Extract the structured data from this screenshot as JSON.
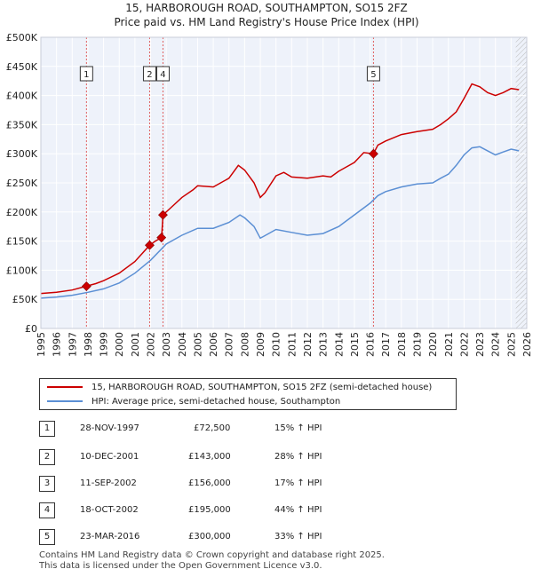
{
  "title_line1": "15, HARBOROUGH ROAD, SOUTHAMPTON, SO15 2FZ",
  "title_line2": "Price paid vs. HM Land Registry's House Price Index (HPI)",
  "colors": {
    "price": "#cc0000",
    "hpi": "#5b8fd4",
    "grid": "#dde3ee",
    "bg": "#eef2fa",
    "vline": "#e06060",
    "hatch": "#b0b0b0"
  },
  "chart_data": {
    "type": "line",
    "title": "Price paid vs. HM Land Registry's House Price Index (HPI)",
    "xlim": [
      1995,
      2026
    ],
    "ylim": [
      0,
      500000
    ],
    "y_ticks": [
      {
        "value": 0,
        "label": "£0"
      },
      {
        "value": 50000,
        "label": "£50K"
      },
      {
        "value": 100000,
        "label": "£100K"
      },
      {
        "value": 150000,
        "label": "£150K"
      },
      {
        "value": 200000,
        "label": "£200K"
      },
      {
        "value": 250000,
        "label": "£250K"
      },
      {
        "value": 300000,
        "label": "£300K"
      },
      {
        "value": 350000,
        "label": "£350K"
      },
      {
        "value": 400000,
        "label": "£400K"
      },
      {
        "value": 450000,
        "label": "£450K"
      },
      {
        "value": 500000,
        "label": "£500K"
      }
    ],
    "x_ticks": [
      "1995",
      "1996",
      "1997",
      "1998",
      "1999",
      "2000",
      "2001",
      "2002",
      "2003",
      "2004",
      "2005",
      "2006",
      "2007",
      "2008",
      "2009",
      "2010",
      "2011",
      "2012",
      "2013",
      "2014",
      "2015",
      "2016",
      "2017",
      "2018",
      "2019",
      "2020",
      "2021",
      "2022",
      "2023",
      "2024",
      "2025",
      "2026"
    ],
    "series": [
      {
        "name": "15, HARBOROUGH ROAD, SOUTHAMPTON, SO15 2FZ (semi-detached house)",
        "x": [
          1995,
          1996,
          1997,
          1997.9,
          1998.5,
          1999,
          2000,
          2001,
          2001.94,
          2002.3,
          2002.7,
          2002.79,
          2003.2,
          2004,
          2004.7,
          2005,
          2006,
          2007,
          2007.6,
          2008,
          2008.6,
          2009,
          2009.3,
          2010,
          2010.5,
          2011,
          2012,
          2013,
          2013.5,
          2014,
          2015,
          2015.6,
          2016.22,
          2016.5,
          2017,
          2018,
          2019,
          2020,
          2020.5,
          2021,
          2021.5,
          2022,
          2022.5,
          2023,
          2023.5,
          2024,
          2024.5,
          2025,
          2025.5
        ],
        "y": [
          60000,
          62000,
          66000,
          72500,
          77000,
          82000,
          95000,
          115000,
          143000,
          150000,
          156000,
          195000,
          205000,
          225000,
          238000,
          245000,
          243000,
          258000,
          280000,
          272000,
          250000,
          225000,
          233000,
          262000,
          268000,
          260000,
          258000,
          262000,
          260000,
          270000,
          285000,
          302000,
          300000,
          315000,
          322000,
          333000,
          338000,
          342000,
          350000,
          360000,
          372000,
          395000,
          420000,
          415000,
          405000,
          400000,
          405000,
          412000,
          410000
        ]
      },
      {
        "name": "HPI: Average price, semi-detached house, Southampton",
        "x": [
          1995,
          1996,
          1997,
          1998,
          1999,
          2000,
          2001,
          2002,
          2003,
          2004,
          2005,
          2006,
          2007,
          2007.7,
          2008,
          2008.6,
          2009,
          2009.2,
          2010,
          2011,
          2012,
          2013,
          2014,
          2015,
          2016,
          2016.5,
          2017,
          2018,
          2019,
          2020,
          2020.5,
          2021,
          2021.5,
          2022,
          2022.5,
          2023,
          2023.5,
          2024,
          2024.5,
          2025,
          2025.5
        ],
        "y": [
          52000,
          54000,
          57000,
          62000,
          68000,
          78000,
          95000,
          117000,
          145000,
          160000,
          172000,
          172000,
          182000,
          195000,
          190000,
          175000,
          155000,
          158000,
          170000,
          165000,
          160000,
          163000,
          175000,
          195000,
          215000,
          228000,
          235000,
          243000,
          248000,
          250000,
          258000,
          265000,
          280000,
          298000,
          310000,
          312000,
          305000,
          298000,
          303000,
          308000,
          305000
        ]
      }
    ],
    "sale_markers": [
      {
        "label": "1",
        "x": 1997.91,
        "y": 72500
      },
      {
        "label": "2",
        "x": 2001.94,
        "y": 143000
      },
      {
        "label": "3",
        "x": 2002.69,
        "y": 156000
      },
      {
        "label": "4",
        "x": 2002.79,
        "y": 195000
      },
      {
        "label": "5",
        "x": 2016.22,
        "y": 300000
      }
    ],
    "label_boxes": [
      {
        "label": "1",
        "x": 1997.91
      },
      {
        "label": "2",
        "x": 2001.94
      },
      {
        "label": "4",
        "x": 2002.79
      },
      {
        "label": "5",
        "x": 2016.22
      }
    ],
    "future_start": 2025.3
  },
  "legend": {
    "price_label": "15, HARBOROUGH ROAD, SOUTHAMPTON, SO15 2FZ (semi-detached house)",
    "hpi_label": "HPI: Average price, semi-detached house, Southampton"
  },
  "sales": [
    {
      "num": "1",
      "date": "28-NOV-1997",
      "price": "£72,500",
      "hpi": "15% ↑ HPI"
    },
    {
      "num": "2",
      "date": "10-DEC-2001",
      "price": "£143,000",
      "hpi": "28% ↑ HPI"
    },
    {
      "num": "3",
      "date": "11-SEP-2002",
      "price": "£156,000",
      "hpi": "17% ↑ HPI"
    },
    {
      "num": "4",
      "date": "18-OCT-2002",
      "price": "£195,000",
      "hpi": "44% ↑ HPI"
    },
    {
      "num": "5",
      "date": "23-MAR-2016",
      "price": "£300,000",
      "hpi": "33% ↑ HPI"
    }
  ],
  "footer": {
    "line1": "Contains HM Land Registry data © Crown copyright and database right 2025.",
    "line2": "This data is licensed under the Open Government Licence v3.0."
  }
}
